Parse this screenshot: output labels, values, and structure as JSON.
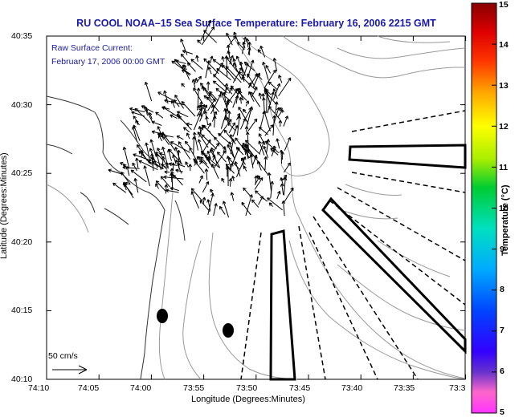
{
  "header": {
    "title": "RU COOL  NOAA–15  Sea Surface Temperature:  February 16, 2006 2215 GMT",
    "current_label": "Raw Surface Current:",
    "current_time": "February 17, 2006 00:00 GMT"
  },
  "axes": {
    "x_title": "Longitude (Degrees:Minutes)",
    "y_title": "Latitude (Degrees:Minutes)",
    "x_ticks": [
      "74:10",
      "74:05",
      "74:00",
      "73:55",
      "73:50",
      "73:45",
      "73:40",
      "73:35",
      "73:3"
    ],
    "y_ticks": [
      "40:35",
      "40:30",
      "40:25",
      "40:20",
      "40:15",
      "40:10"
    ]
  },
  "colorbar": {
    "title": "Temperature (°C)",
    "ticks": [
      "15",
      "14",
      "13",
      "12",
      "11",
      "10",
      "9",
      "8",
      "7",
      "6",
      "5"
    ],
    "range": [
      5,
      15
    ],
    "colors": [
      "#ff00ff",
      "#ff66cc",
      "#6633cc",
      "#0000ff",
      "#00aaff",
      "#00e0c0",
      "#00cc44",
      "#aaee00",
      "#ffff00",
      "#ffaa00",
      "#ff4400",
      "#dd0000",
      "#880000"
    ]
  },
  "scale": {
    "label": "50 cm/s"
  },
  "map": {
    "land_color": "#ffffff",
    "contour_color": "#999999",
    "coast_color": "#333333",
    "vector_color": "#000000",
    "markers": "black filled ellipses (two)",
    "outline_shapes": "thick black polygons and dashed lines"
  }
}
